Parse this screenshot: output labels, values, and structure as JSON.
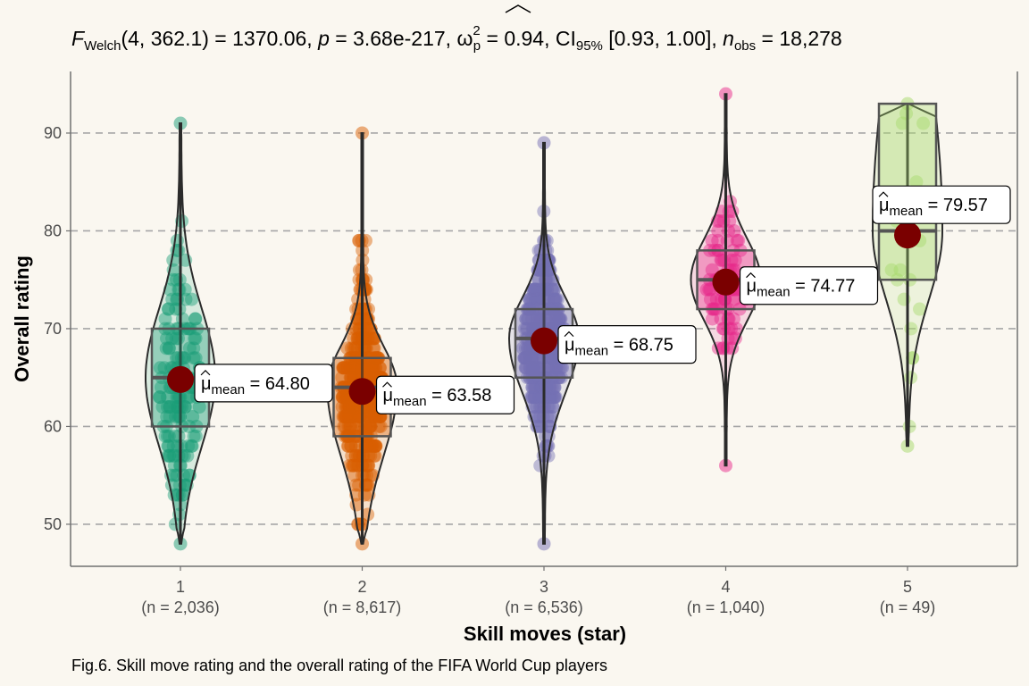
{
  "chart_data": {
    "type": "violin",
    "title": {
      "f_symbol": "F",
      "f_sub": "Welch",
      "f_args": "(4, 362.1)",
      "f_value": " = 1370.06, ",
      "p_symbol": "p",
      "p_value": " = 3.68e-217, ",
      "omega": "ω",
      "omega_sup": "2",
      "omega_sub": "p",
      "omega_value": " = 0.94, CI",
      "ci_sub": "95%",
      "ci_value": " [0.93, 1.00], ",
      "n_symbol": "n",
      "n_sub": "obs",
      "n_value": " = 18,278"
    },
    "xlabel": "Skill moves (star)",
    "ylabel": "Overall rating",
    "caption": "Fig.6. Skill move rating and the overall rating of the FIFA World Cup players",
    "ylim": [
      45.7,
      96.3
    ],
    "yticks": [
      50,
      60,
      70,
      80,
      90
    ],
    "grid": "horizontal dashed",
    "mean_label": {
      "symbol": "μ",
      "sub": "mean",
      "eq": " = "
    },
    "groups": [
      {
        "category": "1",
        "n_label": "(n = 2,036)",
        "color": "#1b9e77",
        "min": 48,
        "q1": 60,
        "median": 65,
        "q3": 70,
        "max": 91,
        "mean": 64.8,
        "mean_text": "64.80"
      },
      {
        "category": "2",
        "n_label": "(n = 8,617)",
        "color": "#d95f02",
        "min": 48,
        "q1": 59,
        "median": 64,
        "q3": 67,
        "max": 90,
        "mean": 63.58,
        "mean_text": "63.58"
      },
      {
        "category": "3",
        "n_label": "(n = 6,536)",
        "color": "#7570b3",
        "min": 48,
        "q1": 65,
        "median": 69,
        "q3": 72,
        "max": 89,
        "mean": 68.75,
        "mean_text": "68.75"
      },
      {
        "category": "4",
        "n_label": "(n = 1,040)",
        "color": "#e7298a",
        "min": 56,
        "q1": 72,
        "median": 75,
        "q3": 78,
        "max": 94,
        "mean": 74.77,
        "mean_text": "74.77"
      },
      {
        "category": "5",
        "n_label": "(n = 49)",
        "color": "#a6d96a",
        "min": 58,
        "q1": 75,
        "median": 80,
        "q3": 93,
        "max": 93,
        "mean": 79.57,
        "mean_text": "79.57"
      }
    ],
    "colors": {
      "background": "#faf7f0",
      "mean_point": "#7a0000",
      "grid": "#a6a6a6",
      "axis": "#707070",
      "outline": "#2b2b2b"
    }
  }
}
